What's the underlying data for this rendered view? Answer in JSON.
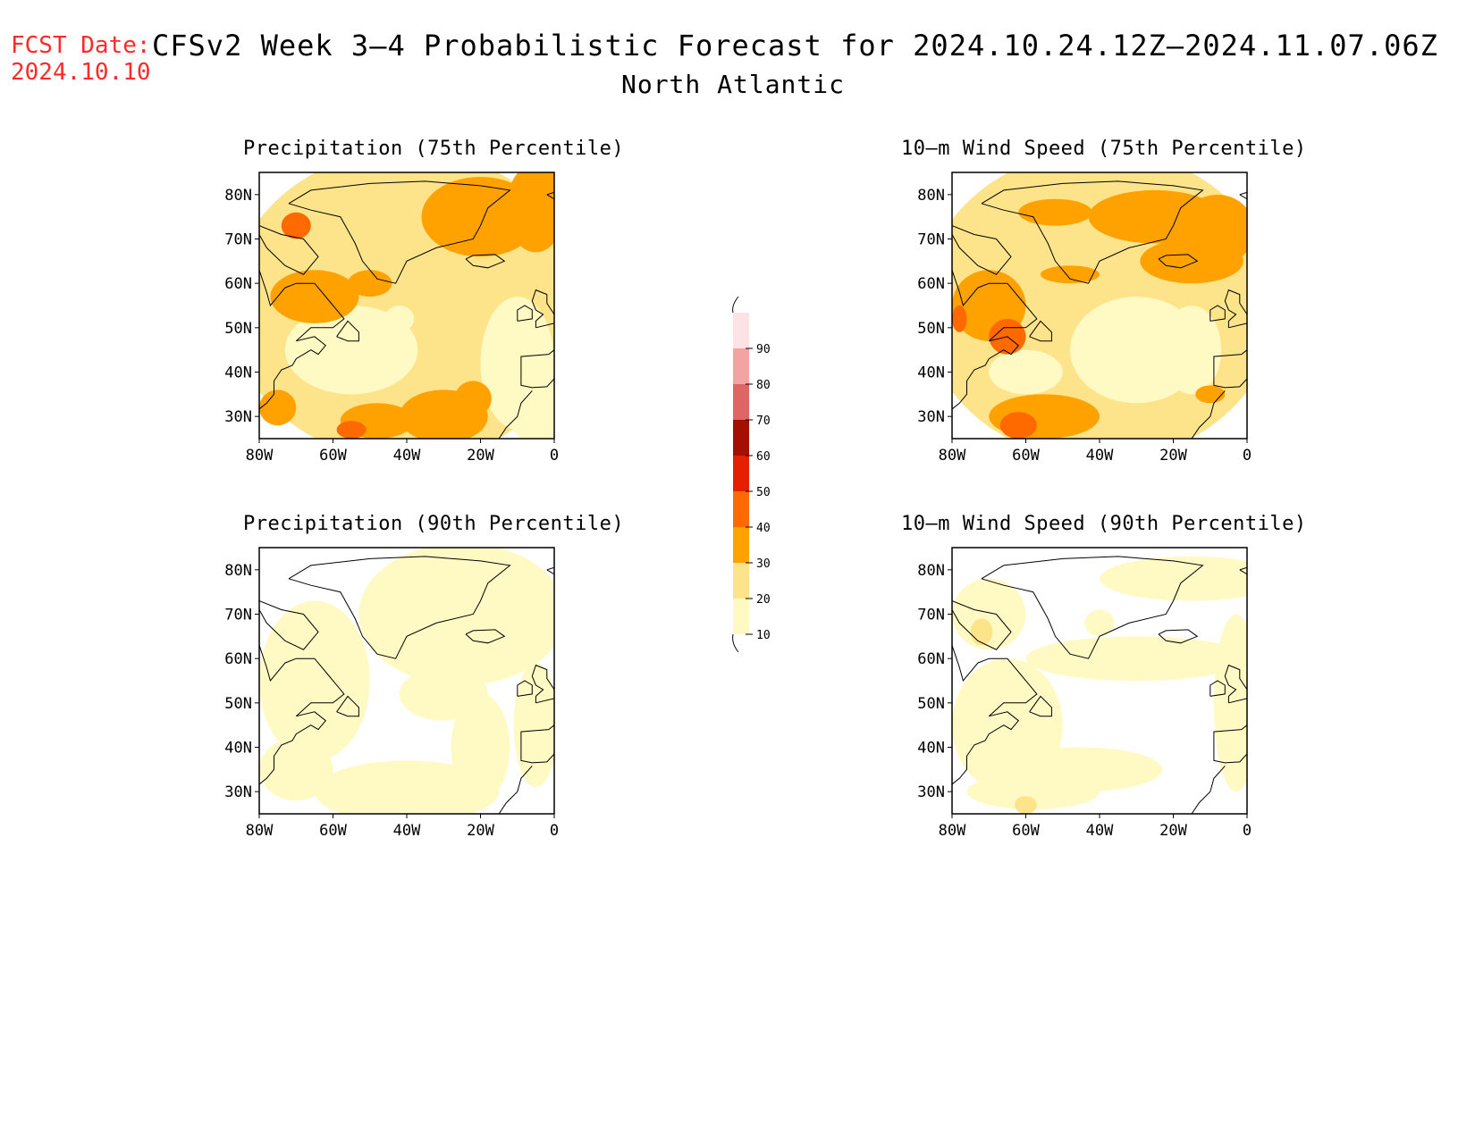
{
  "header": {
    "fcst_label": "FCST Date:",
    "fcst_date": "2024.10.10",
    "title": "CFSv2 Week 3–4 Probabilistic Forecast for 2024.10.24.12Z–2024.11.07.06Z",
    "region": "North Atlantic"
  },
  "panels": [
    {
      "title": "Precipitation (75th Percentile)",
      "variable": "precipitation",
      "percentile": "75th"
    },
    {
      "title": "10–m Wind Speed (75th Percentile)",
      "variable": "wind",
      "percentile": "75th"
    },
    {
      "title": "Precipitation (90th Percentile)",
      "variable": "precipitation",
      "percentile": "90th"
    },
    {
      "title": "10–m Wind Speed (90th Percentile)",
      "variable": "wind",
      "percentile": "90th"
    }
  ],
  "axes": {
    "lat_ticks": [
      "80N",
      "70N",
      "60N",
      "50N",
      "40N",
      "30N"
    ],
    "lon_ticks": [
      "80W",
      "60W",
      "40W",
      "20W",
      "0"
    ],
    "lat_range": [
      25,
      85
    ],
    "lon_range": [
      -80,
      0
    ]
  },
  "colorbar": {
    "ticks": [
      "10",
      "20",
      "30",
      "40",
      "50",
      "60",
      "70",
      "80",
      "90"
    ],
    "colors": [
      "#fff9c4",
      "#fde48a",
      "#ffa200",
      "#ff6a00",
      "#e52000",
      "#a50f00",
      "#e06666",
      "#f4a3a3",
      "#fde3e3"
    ]
  }
}
